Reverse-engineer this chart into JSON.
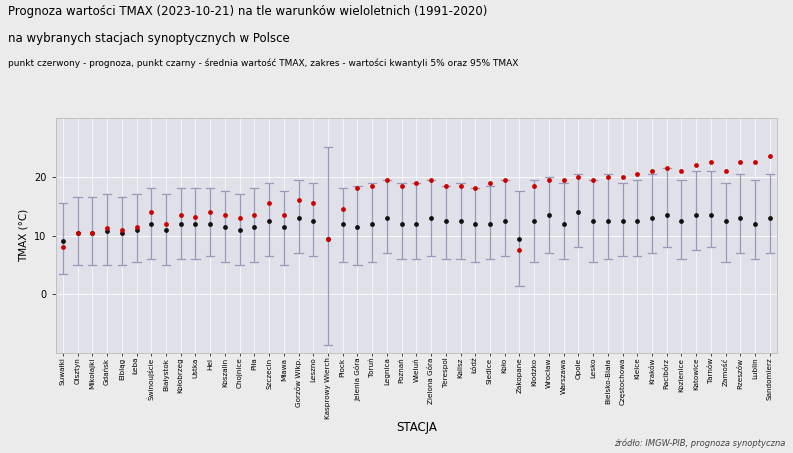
{
  "title_line1": "Prognoza wartości TMAX (2023-10-21) na tle warunków wieloletnich (1991-2020)",
  "title_line2": "na wybranych stacjach synoptycznych w Polsce",
  "subtitle": "punkt czerwony - prognoza, punkt czarny - średnia wartość TMAX, zakres - wartości kwantyli 5% oraz 95% TMAX",
  "xlabel": "STACJA",
  "ylabel": "TMAX (°C)",
  "source": "źródło: IMGW-PIB, prognoza synoptyczna",
  "stations": [
    "Suwałki",
    "Olsztyn",
    "Mikołajki",
    "Gdańsk",
    "Elbląg",
    "Łeba",
    "Świnoujście",
    "Białystok",
    "Kołobrzeg",
    "Ustka",
    "Hel",
    "Koszalin",
    "Chojnice",
    "Piła",
    "Szczecin",
    "Mława",
    "Gorzów Wlkp.",
    "Leszno",
    "Kasprowy Wierch",
    "Płock",
    "Jelenia Góra",
    "Toruń",
    "Legnica",
    "Poznań",
    "Wieluń",
    "Zielona Góra",
    "Terespol",
    "Kalisz",
    "Łódź",
    "Siedlce",
    "Koło",
    "Zakopane",
    "Kłodzko",
    "Wrocław",
    "Warszawa",
    "Opole",
    "Lesko",
    "Bielsko-Biała",
    "Częstochowa",
    "Kielce",
    "Kraków",
    "Racibórz",
    "Kozienice",
    "Katowice",
    "Tarnów",
    "Zamość",
    "Rzeszów",
    "Lublin",
    "Sandomierz"
  ],
  "forecast": [
    8.0,
    10.5,
    10.5,
    11.2,
    11.0,
    11.5,
    14.0,
    12.0,
    13.5,
    13.2,
    14.0,
    13.5,
    13.0,
    13.5,
    15.5,
    13.5,
    16.0,
    15.5,
    9.5,
    14.5,
    18.0,
    18.5,
    19.5,
    18.5,
    19.0,
    19.5,
    18.5,
    18.5,
    18.0,
    19.0,
    19.5,
    7.5,
    18.5,
    19.5,
    19.5,
    20.0,
    19.5,
    20.0,
    20.0,
    20.5,
    21.0,
    21.5,
    21.0,
    22.0,
    22.5,
    21.0,
    22.5,
    22.5,
    23.5
  ],
  "mean": [
    9.0,
    10.5,
    10.5,
    10.8,
    10.5,
    11.0,
    12.0,
    11.0,
    12.0,
    12.0,
    12.0,
    11.5,
    11.0,
    11.5,
    12.5,
    11.5,
    13.0,
    12.5,
    9.5,
    12.0,
    11.5,
    12.0,
    13.0,
    12.0,
    12.0,
    13.0,
    12.5,
    12.5,
    12.0,
    12.0,
    12.5,
    9.5,
    12.5,
    13.5,
    12.0,
    14.0,
    12.5,
    12.5,
    12.5,
    12.5,
    13.0,
    13.5,
    12.5,
    13.5,
    13.5,
    12.5,
    13.0,
    12.0,
    13.0
  ],
  "q05": [
    3.5,
    5.0,
    5.0,
    5.0,
    5.0,
    5.5,
    6.0,
    5.0,
    6.0,
    6.0,
    6.5,
    5.5,
    5.0,
    5.5,
    6.5,
    5.0,
    7.0,
    6.5,
    -8.5,
    5.5,
    5.0,
    5.5,
    7.0,
    6.0,
    6.0,
    6.5,
    6.0,
    6.0,
    5.5,
    6.0,
    6.5,
    1.5,
    5.5,
    7.0,
    6.0,
    8.0,
    5.5,
    6.0,
    6.5,
    6.5,
    7.0,
    8.0,
    6.0,
    7.5,
    8.0,
    5.5,
    7.0,
    6.0,
    7.0
  ],
  "q95": [
    15.5,
    16.5,
    16.5,
    17.0,
    16.5,
    17.0,
    18.0,
    17.0,
    18.0,
    18.0,
    18.0,
    17.5,
    17.0,
    18.0,
    19.0,
    17.5,
    19.5,
    19.0,
    25.0,
    18.0,
    18.5,
    19.0,
    19.5,
    19.0,
    19.0,
    19.5,
    18.5,
    19.0,
    18.0,
    18.5,
    19.5,
    17.5,
    19.5,
    20.0,
    19.0,
    20.5,
    19.5,
    20.5,
    19.0,
    19.5,
    20.5,
    21.5,
    19.5,
    21.0,
    21.0,
    19.0,
    20.5,
    19.5,
    20.5
  ],
  "line_color": "#9999bb",
  "forecast_color": "#cc0000",
  "mean_color": "#111111",
  "bg_color": "#ebebeb",
  "plot_bg_color": "#e0e0e8",
  "ylim": [
    -10,
    30
  ],
  "yticks": [
    0,
    10,
    20
  ],
  "grid_color": "#ffffff"
}
